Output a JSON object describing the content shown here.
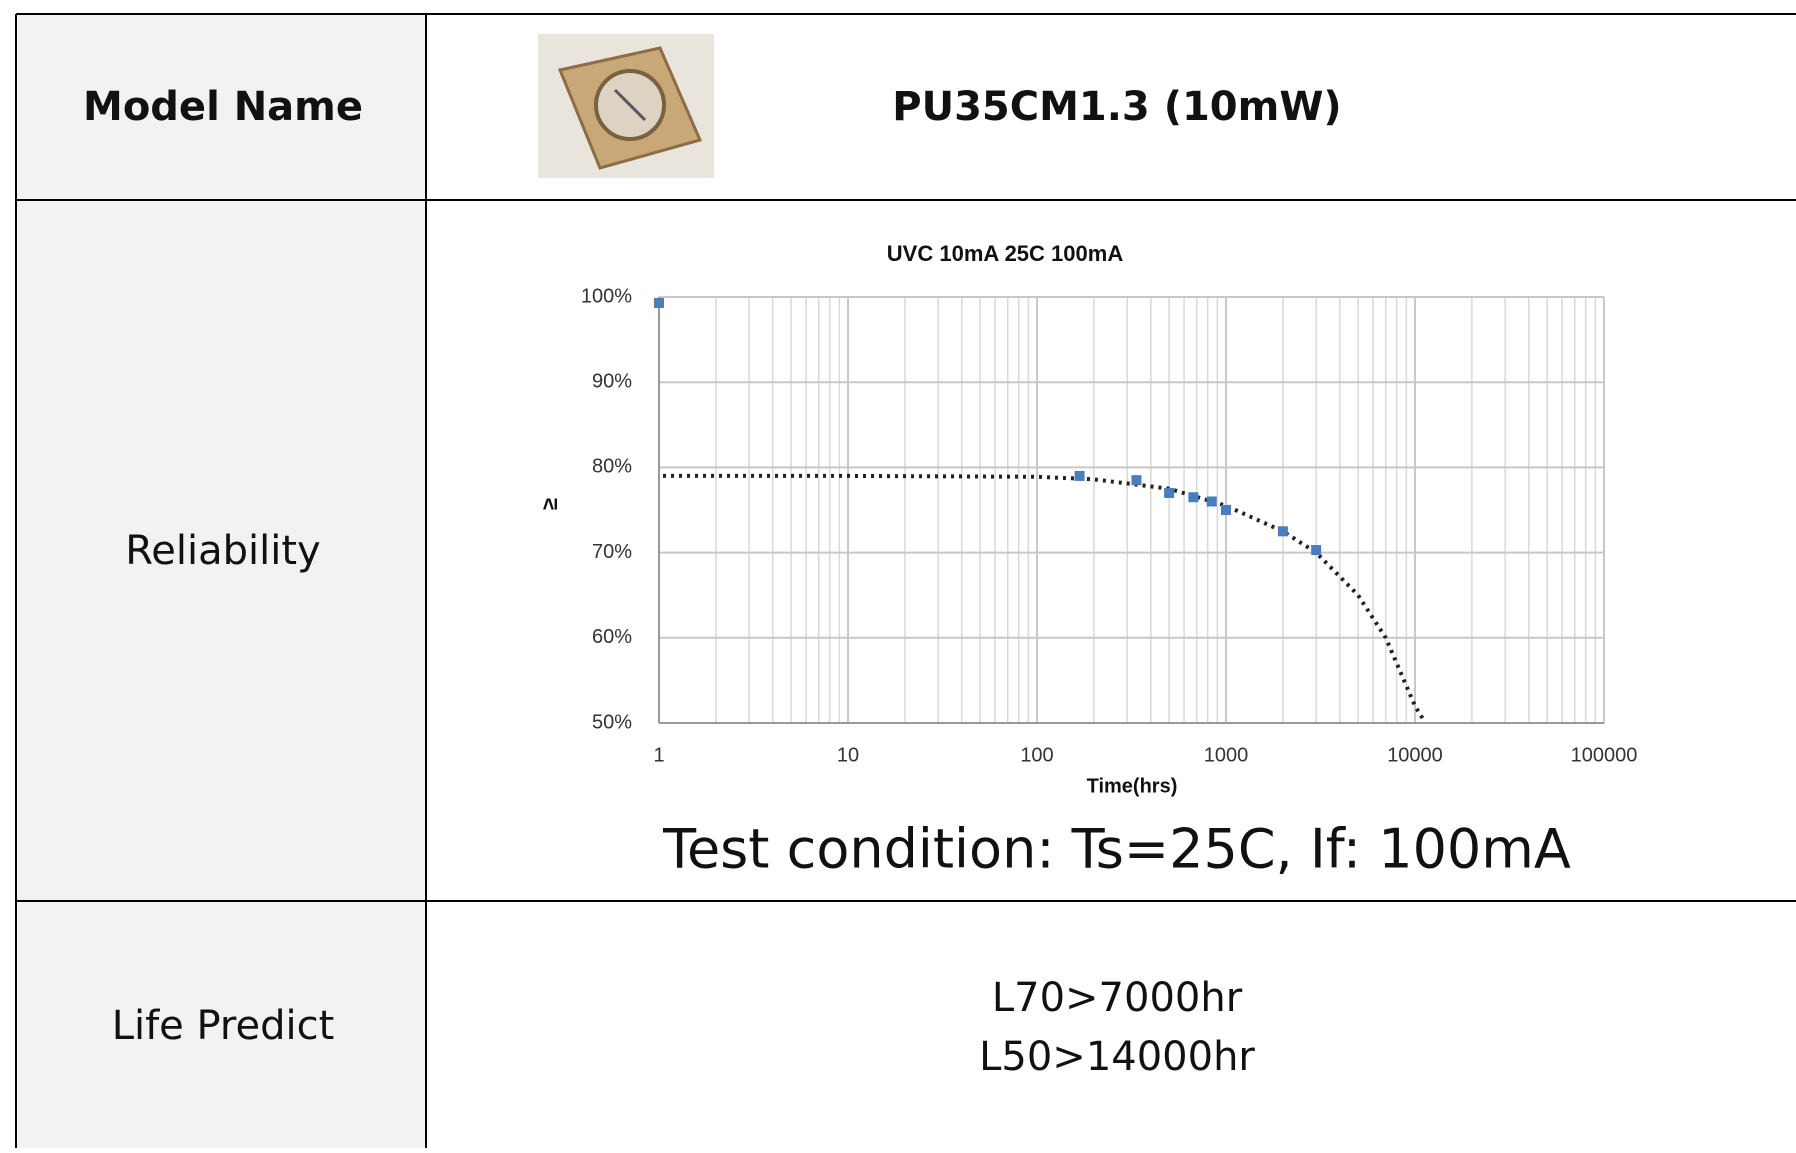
{
  "table": {
    "rows": [
      {
        "label": "Model  Name",
        "value": "PU35CM1.3  (10mW)"
      },
      {
        "label": "Reliability",
        "chart": {
          "type": "scatter",
          "title": "UVC 10mA 25C  100mA",
          "x_label": "Time(hrs)",
          "y_label": "≥",
          "x_scale": "log",
          "xlim": [
            1,
            100000
          ],
          "xticks": [
            1,
            10,
            100,
            1000,
            10000,
            100000
          ],
          "ylim": [
            50,
            100
          ],
          "yticks": [
            {
              "value": 50,
              "label": "50%"
            },
            {
              "value": 60,
              "label": "60%"
            },
            {
              "value": 70,
              "label": "70%"
            },
            {
              "value": 80,
              "label": "80%"
            },
            {
              "value": 90,
              "label": "90%"
            },
            {
              "value": 100,
              "label": "100%"
            }
          ],
          "grid": true,
          "minor_grid": true,
          "points": {
            "color": "#4a7ebb",
            "x": [
              1,
              168,
              336,
              500,
              672,
              840,
              1000,
              2000,
              3000
            ],
            "values": [
              99.3,
              79,
              78.5,
              77,
              76.5,
              76,
              75,
              72.5,
              70.3
            ]
          },
          "trend": {
            "color": "#222222",
            "style": "dotted",
            "x": [
              1.05,
              10,
              100,
              200,
              500,
              1000,
              2000,
              3000,
              5000,
              7000,
              10000,
              11000
            ],
            "values": [
              79,
              79,
              78.9,
              78.6,
              77.5,
              75.5,
              72.5,
              70,
              65,
              60,
              52,
              50.5
            ]
          }
        },
        "note": "Test condition: Ts=25C, If: 100mA"
      },
      {
        "label": "Life Predict",
        "lines": [
          "L70>7000hr",
          "L50>14000hr"
        ]
      }
    ]
  }
}
